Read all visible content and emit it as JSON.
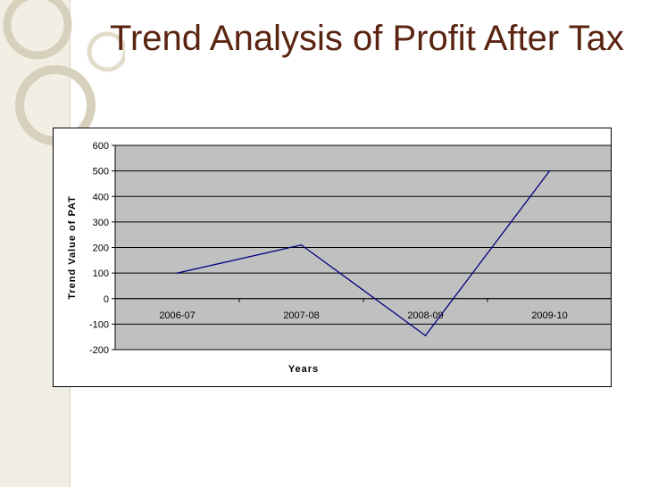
{
  "slide": {
    "title": "Trend Analysis of Profit After Tax"
  },
  "colors": {
    "title": "#5a2412",
    "plot_area": "#c0c0c0",
    "series_line": "#000080",
    "left_band": "#f1eee3"
  },
  "chart_data": {
    "type": "line",
    "title": "",
    "xlabel": "Years",
    "ylabel": "Trend Value of PAT",
    "categories": [
      "2006-07",
      "2007-08",
      "2008-09",
      "2009-10"
    ],
    "series": [
      {
        "values": [
          100,
          210,
          -145,
          500
        ]
      }
    ],
    "ylim": [
      -200,
      600
    ],
    "yticks": [
      600,
      500,
      400,
      300,
      200,
      100,
      0,
      -100,
      -200
    ],
    "grid": true,
    "legend": "none"
  }
}
